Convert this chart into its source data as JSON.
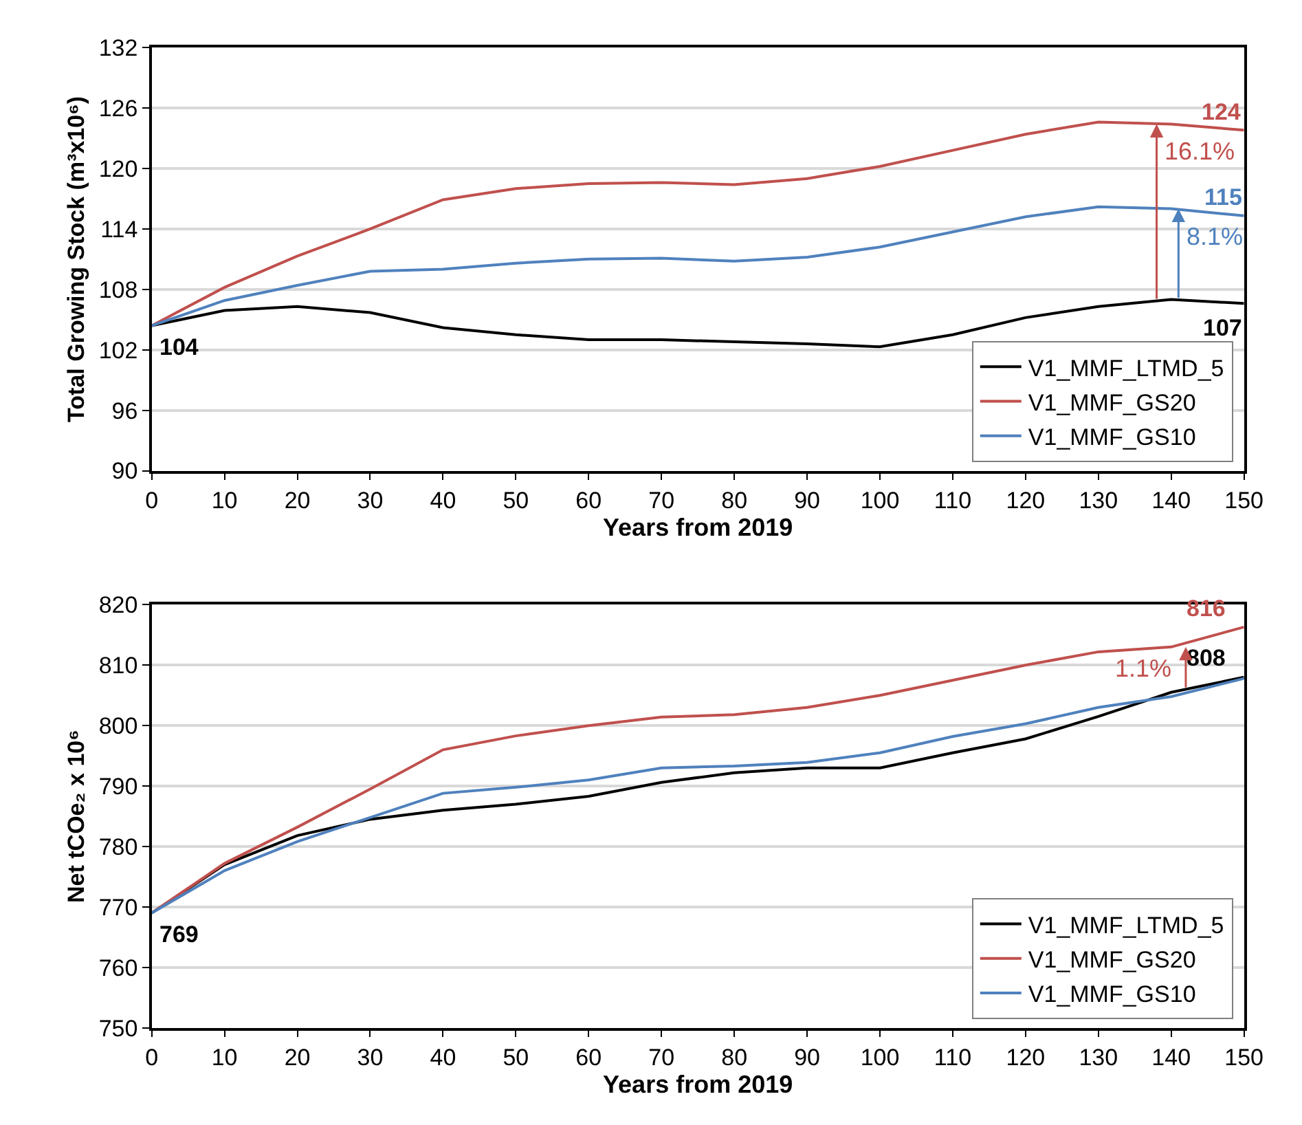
{
  "chart_data": [
    {
      "type": "line",
      "xlabel": "Years from 2019",
      "ylabel": "Total Growing Stock (m³x10⁶)",
      "x": [
        0,
        10,
        20,
        30,
        40,
        50,
        60,
        70,
        80,
        90,
        100,
        110,
        120,
        130,
        140,
        150
      ],
      "series": [
        {
          "name": "V1_MMF_LTMD_5",
          "color": "#000000",
          "values": [
            104.4,
            105.9,
            106.3,
            105.7,
            104.2,
            103.5,
            103.0,
            103.0,
            102.8,
            102.6,
            102.3,
            103.5,
            105.2,
            106.3,
            107.0,
            106.6
          ]
        },
        {
          "name": "V1_MMF_GS20",
          "color": "#c0504d",
          "values": [
            104.4,
            108.2,
            111.3,
            114.0,
            116.9,
            118.0,
            118.5,
            118.6,
            118.4,
            119.0,
            120.2,
            121.8,
            123.4,
            124.6,
            124.4,
            123.8
          ]
        },
        {
          "name": "V1_MMF_GS10",
          "color": "#4f81bd",
          "values": [
            104.4,
            106.9,
            108.4,
            109.8,
            110.0,
            110.6,
            111.0,
            111.1,
            110.8,
            111.2,
            112.2,
            113.7,
            115.2,
            116.2,
            116.0,
            115.3
          ]
        }
      ],
      "xlim": [
        0,
        150
      ],
      "xticks": [
        0,
        10,
        20,
        30,
        40,
        50,
        60,
        70,
        80,
        90,
        100,
        110,
        120,
        130,
        140,
        150
      ],
      "ylim": [
        90,
        132
      ],
      "yticks": [
        90,
        96,
        102,
        108,
        114,
        120,
        126,
        132
      ],
      "grid": "y",
      "legend": "bottom right",
      "marker": "none",
      "line_style": "solid",
      "annotations": [
        {
          "text": "104",
          "x": 0,
          "y": 104.4
        },
        {
          "text": "107",
          "x": 150,
          "y": 106.6
        },
        {
          "text": "124",
          "x": 150,
          "y": 123.8
        },
        {
          "text": "115",
          "x": 150,
          "y": 115.3
        },
        {
          "text": "16.1%",
          "x": 138,
          "y": 124.4
        },
        {
          "text": "8.1%",
          "x": 141,
          "y": 116.0
        }
      ]
    },
    {
      "type": "line",
      "xlabel": "Years from 2019",
      "ylabel": "Net tCOe₂ x 10⁶",
      "x": [
        0,
        10,
        20,
        30,
        40,
        50,
        60,
        70,
        80,
        90,
        100,
        110,
        120,
        130,
        140,
        150
      ],
      "series": [
        {
          "name": "V1_MMF_LTMD_5",
          "color": "#000000",
          "values": [
            769,
            777,
            781.8,
            784.5,
            786,
            787,
            788.3,
            790.6,
            792.2,
            793,
            793,
            795.5,
            797.8,
            801.5,
            805.5,
            808
          ]
        },
        {
          "name": "V1_MMF_GS20",
          "color": "#c0504d",
          "values": [
            769,
            777.2,
            783.2,
            789.5,
            796,
            798.3,
            800,
            801.4,
            801.8,
            803,
            805,
            807.5,
            810,
            812.2,
            813,
            816.3
          ]
        },
        {
          "name": "V1_MMF_GS10",
          "color": "#4f81bd",
          "values": [
            769,
            776,
            780.8,
            784.8,
            788.8,
            789.8,
            791,
            793,
            793.3,
            793.9,
            795.5,
            798.2,
            800.3,
            803,
            804.8,
            807.8
          ]
        }
      ],
      "xlim": [
        0,
        150
      ],
      "xticks": [
        0,
        10,
        20,
        30,
        40,
        50,
        60,
        70,
        80,
        90,
        100,
        110,
        120,
        130,
        140,
        150
      ],
      "ylim": [
        750,
        820
      ],
      "yticks": [
        750,
        760,
        770,
        780,
        790,
        800,
        810,
        820
      ],
      "grid": "y",
      "legend": "bottom right",
      "marker": "none",
      "line_style": "solid",
      "annotations": [
        {
          "text": "769",
          "x": 0,
          "y": 769
        },
        {
          "text": "808",
          "x": 150,
          "y": 808
        },
        {
          "text": "816",
          "x": 150,
          "y": 816.3
        },
        {
          "text": "1.1%",
          "x": 142,
          "y": 813.0
        }
      ]
    }
  ]
}
